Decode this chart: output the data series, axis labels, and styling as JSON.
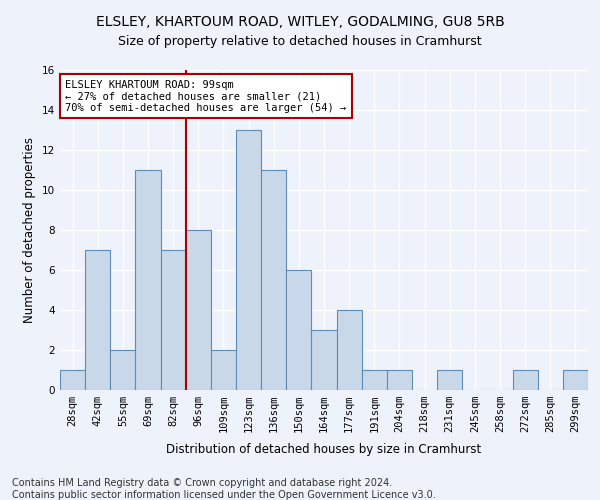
{
  "title": "ELSLEY, KHARTOUM ROAD, WITLEY, GODALMING, GU8 5RB",
  "subtitle": "Size of property relative to detached houses in Cramhurst",
  "xlabel": "Distribution of detached houses by size in Cramhurst",
  "ylabel": "Number of detached properties",
  "categories": [
    "28sqm",
    "42sqm",
    "55sqm",
    "69sqm",
    "82sqm",
    "96sqm",
    "109sqm",
    "123sqm",
    "136sqm",
    "150sqm",
    "164sqm",
    "177sqm",
    "191sqm",
    "204sqm",
    "218sqm",
    "231sqm",
    "245sqm",
    "258sqm",
    "272sqm",
    "285sqm",
    "299sqm"
  ],
  "values": [
    1,
    7,
    2,
    11,
    7,
    8,
    2,
    13,
    11,
    6,
    3,
    4,
    1,
    1,
    0,
    1,
    0,
    0,
    1,
    0,
    1
  ],
  "bar_color": "#c8d8e8",
  "bar_edge_color": "#5b8db8",
  "vline_x_index": 5,
  "vline_color": "#aa0000",
  "annotation_text": "ELSLEY KHARTOUM ROAD: 99sqm\n← 27% of detached houses are smaller (21)\n70% of semi-detached houses are larger (54) →",
  "annotation_box_color": "#ffffff",
  "annotation_box_edge": "#aa0000",
  "ylim": [
    0,
    16
  ],
  "yticks": [
    0,
    2,
    4,
    6,
    8,
    10,
    12,
    14,
    16
  ],
  "footer_line1": "Contains HM Land Registry data © Crown copyright and database right 2024.",
  "footer_line2": "Contains public sector information licensed under the Open Government Licence v3.0.",
  "background_color": "#eef2fb",
  "grid_color": "#ffffff",
  "title_fontsize": 10,
  "subtitle_fontsize": 9,
  "axis_label_fontsize": 8.5,
  "tick_fontsize": 7.5,
  "footer_fontsize": 7,
  "annotation_fontsize": 7.5
}
